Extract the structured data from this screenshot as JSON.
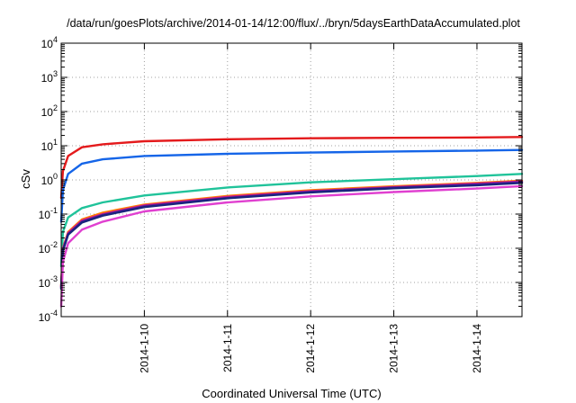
{
  "chart_data": {
    "type": "line",
    "title": "/data/run/goesPlots/archive/2014-01-14/12:00/flux/../bryn/5daysEarthDataAccumulated.plot",
    "xlabel": "Coordinated Universal Time (UTC)",
    "ylabel": "cSv",
    "yscale": "log",
    "ylim": [
      0.0001,
      10000
    ],
    "xlim": [
      "2014-01-09T00:00",
      "2014-01-14T13:00"
    ],
    "y_ticks": [
      {
        "base": "10",
        "exp": "-4",
        "value": 0.0001
      },
      {
        "base": "10",
        "exp": "-3",
        "value": 0.001
      },
      {
        "base": "10",
        "exp": "-2",
        "value": 0.01
      },
      {
        "base": "10",
        "exp": "-1",
        "value": 0.1
      },
      {
        "base": "10",
        "exp": "0",
        "value": 1
      },
      {
        "base": "10",
        "exp": "1",
        "value": 10
      },
      {
        "base": "10",
        "exp": "2",
        "value": 100
      },
      {
        "base": "10",
        "exp": "3",
        "value": 1000
      },
      {
        "base": "10",
        "exp": "4",
        "value": 10000
      }
    ],
    "x_ticks": [
      {
        "label": "2014-1-10",
        "value": "2014-01-10T00:00"
      },
      {
        "label": "2014-1-11",
        "value": "2014-01-11T00:00"
      },
      {
        "label": "2014-1-12",
        "value": "2014-01-12T00:00"
      },
      {
        "label": "2014-1-13",
        "value": "2014-01-13T00:00"
      },
      {
        "label": "2014-1-14",
        "value": "2014-01-14T00:00"
      }
    ],
    "grid": true,
    "legend": "none",
    "series": [
      {
        "color": "#e41a1c",
        "x": [
          "2014-01-09T00:00",
          "2014-01-09T00:30",
          "2014-01-09T02:00",
          "2014-01-09T06:00",
          "2014-01-09T12:00",
          "2014-01-10T00:00",
          "2014-01-11T00:00",
          "2014-01-12T00:00",
          "2014-01-13T00:00",
          "2014-01-14T00:00",
          "2014-01-14T13:00"
        ],
        "y": [
          0.3,
          1.8,
          5.0,
          9.0,
          11.0,
          13.5,
          15.5,
          16.5,
          17.0,
          17.5,
          18.0
        ]
      },
      {
        "color": "#1565e8",
        "x": [
          "2014-01-09T00:00",
          "2014-01-09T00:30",
          "2014-01-09T02:00",
          "2014-01-09T06:00",
          "2014-01-09T12:00",
          "2014-01-10T00:00",
          "2014-01-11T00:00",
          "2014-01-12T00:00",
          "2014-01-13T00:00",
          "2014-01-14T00:00",
          "2014-01-14T13:00"
        ],
        "y": [
          0.06,
          0.5,
          1.5,
          3.0,
          4.0,
          5.0,
          5.8,
          6.3,
          6.8,
          7.2,
          7.5
        ]
      },
      {
        "color": "#20c39a",
        "x": [
          "2014-01-09T00:00",
          "2014-01-09T00:30",
          "2014-01-09T02:00",
          "2014-01-09T06:00",
          "2014-01-09T12:00",
          "2014-01-10T00:00",
          "2014-01-11T00:00",
          "2014-01-12T00:00",
          "2014-01-13T00:00",
          "2014-01-14T00:00",
          "2014-01-14T13:00"
        ],
        "y": [
          0.003,
          0.03,
          0.08,
          0.15,
          0.22,
          0.35,
          0.6,
          0.85,
          1.05,
          1.3,
          1.5
        ]
      },
      {
        "color": "#ff7f00",
        "x": [
          "2014-01-09T00:00",
          "2014-01-09T00:30",
          "2014-01-09T02:00",
          "2014-01-09T06:00",
          "2014-01-09T12:00",
          "2014-01-10T00:00",
          "2014-01-11T00:00",
          "2014-01-12T00:00",
          "2014-01-13T00:00",
          "2014-01-14T00:00",
          "2014-01-14T13:00"
        ],
        "y": [
          0.0008,
          0.01,
          0.03,
          0.07,
          0.11,
          0.19,
          0.34,
          0.5,
          0.65,
          0.82,
          0.95
        ]
      },
      {
        "color": "#d01c8b",
        "x": [
          "2014-01-09T00:00",
          "2014-01-09T00:30",
          "2014-01-09T02:00",
          "2014-01-09T06:00",
          "2014-01-09T12:00",
          "2014-01-10T00:00",
          "2014-01-11T00:00",
          "2014-01-12T00:00",
          "2014-01-13T00:00",
          "2014-01-14T00:00",
          "2014-01-14T13:00"
        ],
        "y": [
          0.00075,
          0.0095,
          0.028,
          0.065,
          0.1,
          0.18,
          0.32,
          0.47,
          0.62,
          0.78,
          0.9
        ]
      },
      {
        "color": "#6a1b9a",
        "x": [
          "2014-01-09T00:00",
          "2014-01-09T00:30",
          "2014-01-09T02:00",
          "2014-01-09T06:00",
          "2014-01-09T12:00",
          "2014-01-10T00:00",
          "2014-01-11T00:00",
          "2014-01-12T00:00",
          "2014-01-13T00:00",
          "2014-01-14T00:00",
          "2014-01-14T13:00"
        ],
        "y": [
          0.0007,
          0.009,
          0.026,
          0.06,
          0.095,
          0.17,
          0.3,
          0.45,
          0.6,
          0.74,
          0.86
        ]
      },
      {
        "color": "#1a237e",
        "x": [
          "2014-01-09T00:00",
          "2014-01-09T00:30",
          "2014-01-09T02:00",
          "2014-01-09T06:00",
          "2014-01-09T12:00",
          "2014-01-10T00:00",
          "2014-01-11T00:00",
          "2014-01-12T00:00",
          "2014-01-13T00:00",
          "2014-01-14T00:00",
          "2014-01-14T13:00"
        ],
        "y": [
          0.00065,
          0.0085,
          0.025,
          0.057,
          0.09,
          0.16,
          0.29,
          0.43,
          0.57,
          0.7,
          0.82
        ]
      },
      {
        "color": "#e040d0",
        "x": [
          "2014-01-09T00:00",
          "2014-01-09T00:30",
          "2014-01-09T02:00",
          "2014-01-09T06:00",
          "2014-01-09T12:00",
          "2014-01-10T00:00",
          "2014-01-11T00:00",
          "2014-01-12T00:00",
          "2014-01-13T00:00",
          "2014-01-14T00:00",
          "2014-01-14T13:00"
        ],
        "y": [
          0.0002,
          0.004,
          0.014,
          0.035,
          0.06,
          0.12,
          0.22,
          0.33,
          0.44,
          0.56,
          0.66
        ]
      }
    ]
  }
}
